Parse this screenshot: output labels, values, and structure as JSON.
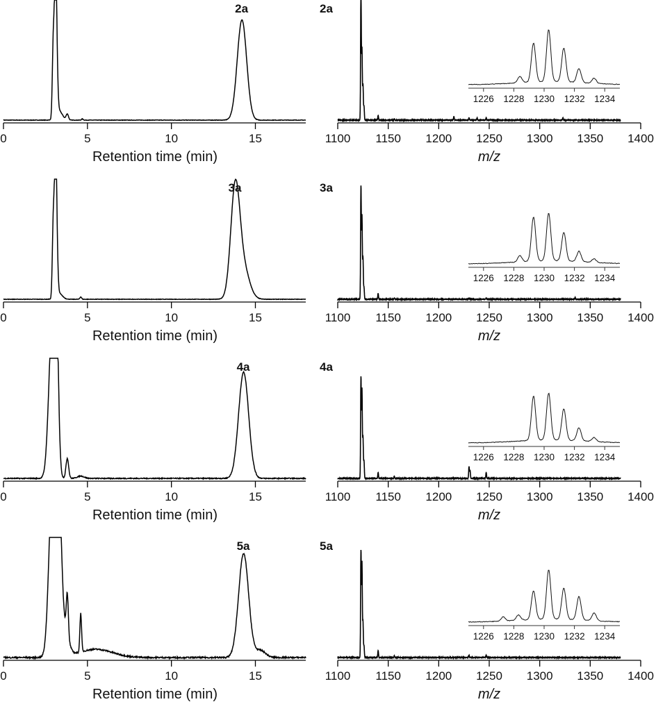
{
  "chart_data": [
    {
      "type": "line",
      "panel": "chromatogram",
      "label": "2a",
      "xlabel": "Retention time (min)",
      "xlim": [
        0,
        18
      ],
      "xticks": [
        0,
        5,
        10,
        15
      ],
      "peaks": [
        {
          "x": 2.95,
          "h": 0.45,
          "w": 0.05
        },
        {
          "x": 3.1,
          "h": 1.3,
          "w": 0.08
        },
        {
          "x": 3.3,
          "h": 0.08,
          "w": 0.2
        },
        {
          "x": 3.8,
          "h": 0.05,
          "w": 0.07
        },
        {
          "x": 4.7,
          "h": 0.01,
          "w": 0.05
        },
        {
          "x": 14.2,
          "h": 0.85,
          "w": 0.28
        }
      ],
      "noise": 0.004
    },
    {
      "type": "line",
      "panel": "chromatogram",
      "label": "3a",
      "xlabel": "Retention time (min)",
      "xlim": [
        0,
        18
      ],
      "xticks": [
        0,
        5,
        10,
        15
      ],
      "peaks": [
        {
          "x": 2.95,
          "h": 0.45,
          "w": 0.05
        },
        {
          "x": 3.1,
          "h": 1.3,
          "w": 0.08
        },
        {
          "x": 3.3,
          "h": 0.05,
          "w": 0.2
        },
        {
          "x": 4.6,
          "h": 0.02,
          "w": 0.05
        },
        {
          "x": 13.8,
          "h": 0.92,
          "w": 0.27
        },
        {
          "x": 14.3,
          "h": 0.25,
          "w": 0.35
        }
      ],
      "noise": 0.004
    },
    {
      "type": "line",
      "panel": "chromatogram",
      "label": "4a",
      "xlabel": "Retention time (min)",
      "xlim": [
        0,
        18
      ],
      "xticks": [
        0,
        5,
        10,
        15
      ],
      "peaks": [
        {
          "x": 2.9,
          "h": 1.3,
          "w": 0.2
        },
        {
          "x": 3.15,
          "h": 1.1,
          "w": 0.12
        },
        {
          "x": 3.8,
          "h": 0.17,
          "w": 0.08
        },
        {
          "x": 4.6,
          "h": 0.02,
          "w": 0.2
        },
        {
          "x": 14.3,
          "h": 0.9,
          "w": 0.3
        }
      ],
      "noise": 0.008
    },
    {
      "type": "line",
      "panel": "chromatogram",
      "label": "5a",
      "xlabel": "Retention time (min)",
      "xlim": [
        0,
        18
      ],
      "xticks": [
        0,
        5,
        10,
        15
      ],
      "peaks": [
        {
          "x": 2.9,
          "h": 1.4,
          "w": 0.2
        },
        {
          "x": 3.3,
          "h": 1.2,
          "w": 0.15
        },
        {
          "x": 3.6,
          "h": 0.25,
          "w": 0.25
        },
        {
          "x": 3.8,
          "h": 0.35,
          "w": 0.06
        },
        {
          "x": 4.6,
          "h": 0.33,
          "w": 0.05
        },
        {
          "x": 5.5,
          "h": 0.07,
          "w": 1.0
        },
        {
          "x": 14.3,
          "h": 0.88,
          "w": 0.3
        },
        {
          "x": 15.3,
          "h": 0.06,
          "w": 0.3
        }
      ],
      "noise": 0.012
    },
    {
      "type": "line",
      "panel": "mass-spectrum",
      "label": "2a",
      "xlabel": "m/z",
      "xlim": [
        1100,
        1400
      ],
      "xticks": [
        1100,
        1150,
        1200,
        1250,
        1300,
        1350,
        1400
      ],
      "peaks": [
        {
          "x": 1123,
          "h": 1.1
        },
        {
          "x": 1124,
          "h": 0.6
        },
        {
          "x": 1125,
          "h": 0.3
        },
        {
          "x": 1126,
          "h": 0.12
        },
        {
          "x": 1140,
          "h": 0.04
        },
        {
          "x": 1156,
          "h": 0.01
        },
        {
          "x": 1215,
          "h": 0.03
        },
        {
          "x": 1230,
          "h": 0.02
        },
        {
          "x": 1238,
          "h": 0.02
        },
        {
          "x": 1247,
          "h": 0.02
        },
        {
          "x": 1323,
          "h": 0.02
        }
      ],
      "inset": {
        "xlim": [
          1225,
          1235
        ],
        "xticks": [
          1226,
          1228,
          1230,
          1232,
          1234
        ],
        "peaks": [
          {
            "x": 1228.4,
            "h": 0.12
          },
          {
            "x": 1229.3,
            "h": 0.75
          },
          {
            "x": 1230.3,
            "h": 1.0
          },
          {
            "x": 1231.3,
            "h": 0.65
          },
          {
            "x": 1232.3,
            "h": 0.27
          },
          {
            "x": 1233.3,
            "h": 0.1
          }
        ]
      }
    },
    {
      "type": "line",
      "panel": "mass-spectrum",
      "label": "3a",
      "xlabel": "m/z",
      "xlim": [
        1100,
        1400
      ],
      "xticks": [
        1100,
        1150,
        1200,
        1250,
        1300,
        1350,
        1400
      ],
      "peaks": [
        {
          "x": 1123,
          "h": 0.95
        },
        {
          "x": 1124,
          "h": 0.7
        },
        {
          "x": 1125,
          "h": 0.35
        },
        {
          "x": 1126,
          "h": 0.1
        },
        {
          "x": 1140,
          "h": 0.05
        },
        {
          "x": 1156,
          "h": 0.01
        },
        {
          "x": 1230,
          "h": 0.01
        },
        {
          "x": 1247,
          "h": 0.01
        },
        {
          "x": 1335,
          "h": 0.015
        }
      ],
      "inset": {
        "xlim": [
          1225,
          1235
        ],
        "xticks": [
          1226,
          1228,
          1230,
          1232,
          1234
        ],
        "peaks": [
          {
            "x": 1228.4,
            "h": 0.12
          },
          {
            "x": 1229.3,
            "h": 0.85
          },
          {
            "x": 1230.3,
            "h": 0.92
          },
          {
            "x": 1231.3,
            "h": 0.55
          },
          {
            "x": 1232.3,
            "h": 0.2
          },
          {
            "x": 1233.3,
            "h": 0.07
          }
        ]
      }
    },
    {
      "type": "line",
      "panel": "mass-spectrum",
      "label": "4a",
      "xlabel": "m/z",
      "xlim": [
        1100,
        1400
      ],
      "xticks": [
        1100,
        1150,
        1200,
        1250,
        1300,
        1350,
        1400
      ],
      "peaks": [
        {
          "x": 1123,
          "h": 0.85
        },
        {
          "x": 1124,
          "h": 0.75
        },
        {
          "x": 1125,
          "h": 0.35
        },
        {
          "x": 1126,
          "h": 0.15
        },
        {
          "x": 1140,
          "h": 0.05
        },
        {
          "x": 1156,
          "h": 0.02
        },
        {
          "x": 1230,
          "h": 0.1
        },
        {
          "x": 1231,
          "h": 0.07
        },
        {
          "x": 1247,
          "h": 0.05
        }
      ],
      "inset": {
        "xlim": [
          1225,
          1235
        ],
        "xticks": [
          1226,
          1228,
          1230,
          1232,
          1234
        ],
        "peaks": [
          {
            "x": 1229.3,
            "h": 0.85
          },
          {
            "x": 1230.3,
            "h": 0.9
          },
          {
            "x": 1231.3,
            "h": 0.6
          },
          {
            "x": 1232.3,
            "h": 0.25
          },
          {
            "x": 1233.3,
            "h": 0.08
          }
        ]
      }
    },
    {
      "type": "line",
      "panel": "mass-spectrum",
      "label": "5a",
      "xlabel": "m/z",
      "xlim": [
        1100,
        1400
      ],
      "xticks": [
        1100,
        1150,
        1200,
        1250,
        1300,
        1350,
        1400
      ],
      "peaks": [
        {
          "x": 1123,
          "h": 0.9
        },
        {
          "x": 1124,
          "h": 0.8
        },
        {
          "x": 1125,
          "h": 0.3
        },
        {
          "x": 1126,
          "h": 0.1
        },
        {
          "x": 1140,
          "h": 0.06
        },
        {
          "x": 1156,
          "h": 0.015
        },
        {
          "x": 1230,
          "h": 0.02
        },
        {
          "x": 1247,
          "h": 0.02
        }
      ],
      "inset": {
        "xlim": [
          1225,
          1235
        ],
        "xticks": [
          1226,
          1228,
          1230,
          1232,
          1234
        ],
        "peaks": [
          {
            "x": 1227.3,
            "h": 0.08
          },
          {
            "x": 1228.3,
            "h": 0.1
          },
          {
            "x": 1229.3,
            "h": 0.55
          },
          {
            "x": 1230.3,
            "h": 0.95
          },
          {
            "x": 1231.3,
            "h": 0.6
          },
          {
            "x": 1232.3,
            "h": 0.45
          },
          {
            "x": 1233.3,
            "h": 0.15
          }
        ]
      }
    }
  ]
}
